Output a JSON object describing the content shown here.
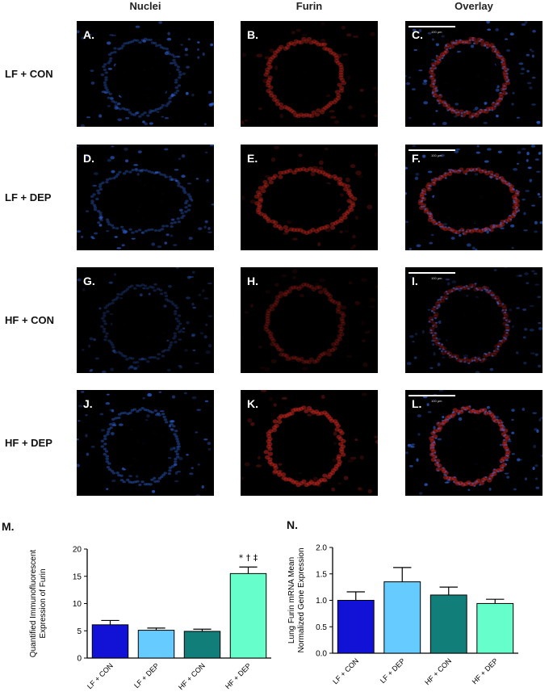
{
  "columns": [
    "Nuclei",
    "Furin",
    "Overlay"
  ],
  "rows": [
    "LF + CON",
    "LF + DEP",
    "HF + CON",
    "HF + DEP"
  ],
  "panel_letters": [
    [
      "A.",
      "B.",
      "C."
    ],
    [
      "D.",
      "E.",
      "F."
    ],
    [
      "G.",
      "H.",
      "I."
    ],
    [
      "J.",
      "K.",
      "L."
    ]
  ],
  "scale_bar_text": "100 µm",
  "panel_letter_m": "M.",
  "panel_letter_n": "N.",
  "colors": {
    "nuclei": "#2f64d8",
    "furin": "#c8261e",
    "bar_colors": [
      "#1212d6",
      "#66ccff",
      "#127e7a",
      "#66ffcc"
    ]
  },
  "chart_data": [
    {
      "type": "bar",
      "categories": [
        "LF + CON",
        "LF + DEP",
        "HF + CON",
        "HF + DEP"
      ],
      "values": [
        6.1,
        5.1,
        4.9,
        15.5
      ],
      "errors": [
        0.8,
        0.4,
        0.4,
        1.2
      ],
      "ylabel": "Quantified Immunofluorescent Expression of Furin",
      "ylabel_lines": [
        "Quantified Immunofluorescent",
        "Expression of Furin"
      ],
      "ylim": [
        0,
        20
      ],
      "yticks": [
        "0",
        "5",
        "10",
        "15",
        "20"
      ],
      "annotation": "* † ‡",
      "annotation_index": 3,
      "grid": false
    },
    {
      "type": "bar",
      "categories": [
        "LF + CON",
        "LF + DEP",
        "HF + CON",
        "HF + DEP"
      ],
      "values": [
        1.0,
        1.35,
        1.1,
        0.94
      ],
      "errors": [
        0.16,
        0.27,
        0.15,
        0.08
      ],
      "ylabel": "Lung Furin mRNA Mean Normalized Gene Expression",
      "ylabel_lines": [
        "Lung Furin mRNA Mean",
        "Normalized Gene Expression"
      ],
      "ylim": [
        0,
        2.0
      ],
      "yticks": [
        "0.0",
        "0.5",
        "1.0",
        "1.5",
        "2.0"
      ],
      "grid": false
    }
  ]
}
